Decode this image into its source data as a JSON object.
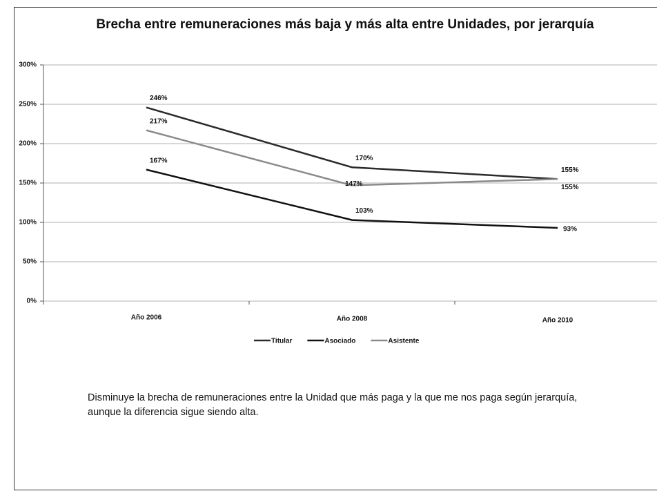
{
  "chart_data": {
    "type": "line",
    "title": "Brecha entre remuneraciones más baja y más alta entre Unidades, por jerarquía",
    "categories": [
      "Año 2006",
      "Año 2008",
      "Año 2010"
    ],
    "series": [
      {
        "name": "Titular",
        "color": "#2a2a2a",
        "values": [
          246,
          170,
          155
        ],
        "value_labels": [
          "246%",
          "170%",
          "155%"
        ]
      },
      {
        "name": "Asociado",
        "color": "#111111",
        "values": [
          167,
          103,
          93
        ],
        "value_labels": [
          "167%",
          "103%",
          "93%"
        ]
      },
      {
        "name": "Asistente",
        "color": "#8a8a8a",
        "values": [
          217,
          147,
          155
        ],
        "value_labels": [
          "217%",
          "147%",
          "155%"
        ]
      }
    ],
    "ylim": [
      0,
      300
    ],
    "yticks": [
      {
        "value": 0,
        "label": "0%"
      },
      {
        "value": 50,
        "label": "50%"
      },
      {
        "value": 100,
        "label": "100%"
      },
      {
        "value": 150,
        "label": "150%"
      },
      {
        "value": 200,
        "label": "200%"
      },
      {
        "value": 250,
        "label": "250%"
      },
      {
        "value": 300,
        "label": "300%"
      }
    ],
    "grid": true,
    "legend": "bottom"
  },
  "caption": "Disminuye la brecha de remuneraciones entre la Unidad que más paga y la que me nos paga según jerarquía, aunque la diferencia sigue siendo alta."
}
